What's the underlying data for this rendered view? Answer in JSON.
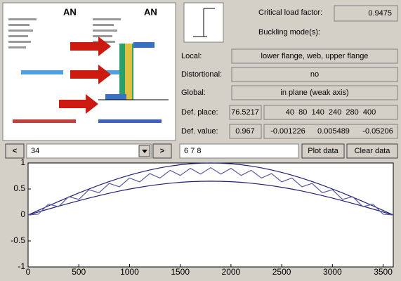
{
  "image": {
    "logos": [
      "AN",
      "AN"
    ]
  },
  "panel": {
    "critical_label": "Critical load factor:",
    "critical_value": "0.9475",
    "modes_label": "Buckling mode(s):",
    "rows": [
      {
        "label": "Local:",
        "value": "lower flange, web, upper flange"
      },
      {
        "label": "Distortional:",
        "value": "no"
      },
      {
        "label": "Global:",
        "value": "in plane (weak axis)"
      }
    ],
    "def_place_label": "Def. place:",
    "def_place": [
      "76.5217",
      "40  80  140  240  280  400"
    ],
    "def_value_label": "Def. value:",
    "def_value": [
      "0.967",
      "-0.001226",
      "0.005489",
      "-0.05206"
    ]
  },
  "controls": {
    "prev": "<",
    "mode": "34",
    "next": ">",
    "modes_input": "6 7 8",
    "plot": "Plot data",
    "clear": "Clear data"
  },
  "chart_data": {
    "type": "line",
    "x": [
      0,
      100,
      200,
      300,
      400,
      500,
      600,
      700,
      800,
      900,
      1000,
      1100,
      1200,
      1300,
      1400,
      1500,
      1600,
      1700,
      1800,
      1900,
      2000,
      2100,
      2200,
      2300,
      2400,
      2500,
      2600,
      2700,
      2800,
      2900,
      3000,
      3100,
      3200,
      3300,
      3400,
      3500,
      3600
    ],
    "series": [
      {
        "color": "#1f1f78",
        "values": [
          0,
          0.087,
          0.174,
          0.259,
          0.342,
          0.423,
          0.5,
          0.574,
          0.643,
          0.707,
          0.766,
          0.819,
          0.866,
          0.906,
          0.94,
          0.966,
          0.985,
          0.996,
          1,
          0.996,
          0.985,
          0.966,
          0.94,
          0.906,
          0.866,
          0.819,
          0.766,
          0.707,
          0.643,
          0.574,
          0.5,
          0.423,
          0.342,
          0.259,
          0.174,
          0.087,
          0
        ]
      },
      {
        "color": "#1f1f78",
        "values": [
          0,
          0.057,
          0.113,
          0.168,
          0.222,
          0.275,
          0.325,
          0.373,
          0.418,
          0.46,
          0.498,
          0.532,
          0.563,
          0.589,
          0.611,
          0.628,
          0.64,
          0.647,
          0.65,
          0.647,
          0.64,
          0.628,
          0.611,
          0.589,
          0.563,
          0.532,
          0.498,
          0.46,
          0.418,
          0.373,
          0.325,
          0.275,
          0.222,
          0.168,
          0.113,
          0.057,
          0
        ]
      },
      {
        "color": "#5a5aa0",
        "values": [
          0,
          0.014,
          0.208,
          0.16,
          0.351,
          0.3,
          0.485,
          0.428,
          0.607,
          0.541,
          0.711,
          0.636,
          0.796,
          0.71,
          0.859,
          0.761,
          0.897,
          0.787,
          0.91,
          0.787,
          0.897,
          0.761,
          0.859,
          0.71,
          0.796,
          0.636,
          0.711,
          0.541,
          0.607,
          0.428,
          0.485,
          0.3,
          0.351,
          0.16,
          0.208,
          0.014,
          0
        ]
      }
    ],
    "xlim": [
      0,
      3600
    ],
    "xticks": [
      0,
      500,
      1000,
      1500,
      2000,
      2500,
      3000,
      3500
    ],
    "ylim": [
      -1,
      1
    ],
    "yticks": [
      -1,
      -0.5,
      0,
      0.5,
      1
    ]
  }
}
